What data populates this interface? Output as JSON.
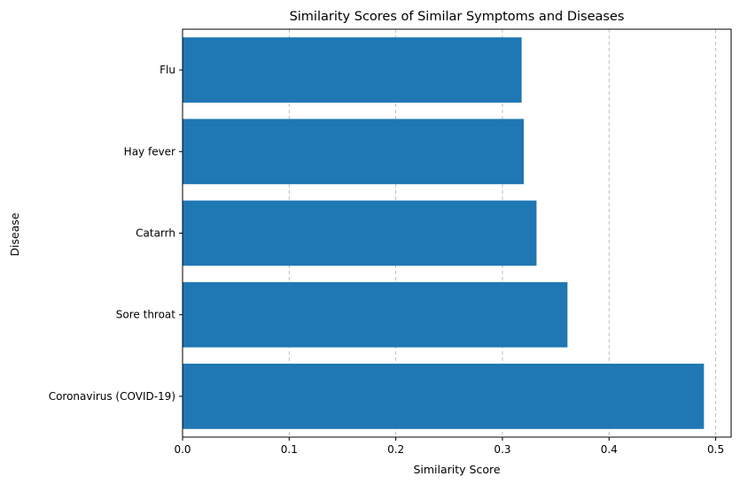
{
  "chart_data": {
    "type": "bar",
    "orientation": "horizontal",
    "title": "Similarity Scores of Similar Symptoms and Diseases",
    "xlabel": "Similarity Score",
    "ylabel": "Disease",
    "categories": [
      "Coronavirus (COVID-19)",
      "Sore throat",
      "Catarrh",
      "Hay fever",
      "Flu"
    ],
    "values": [
      0.489,
      0.361,
      0.332,
      0.32,
      0.318
    ],
    "xlim": [
      0.0,
      0.5145
    ],
    "xticks": [
      0.0,
      0.1,
      0.2,
      0.3,
      0.4,
      0.5
    ],
    "xtick_labels": [
      "0.0",
      "0.1",
      "0.2",
      "0.3",
      "0.4",
      "0.5"
    ],
    "grid": "x-axis dashed",
    "bar_color": "#1f77b4",
    "grid_color": "#b0b0b0"
  }
}
